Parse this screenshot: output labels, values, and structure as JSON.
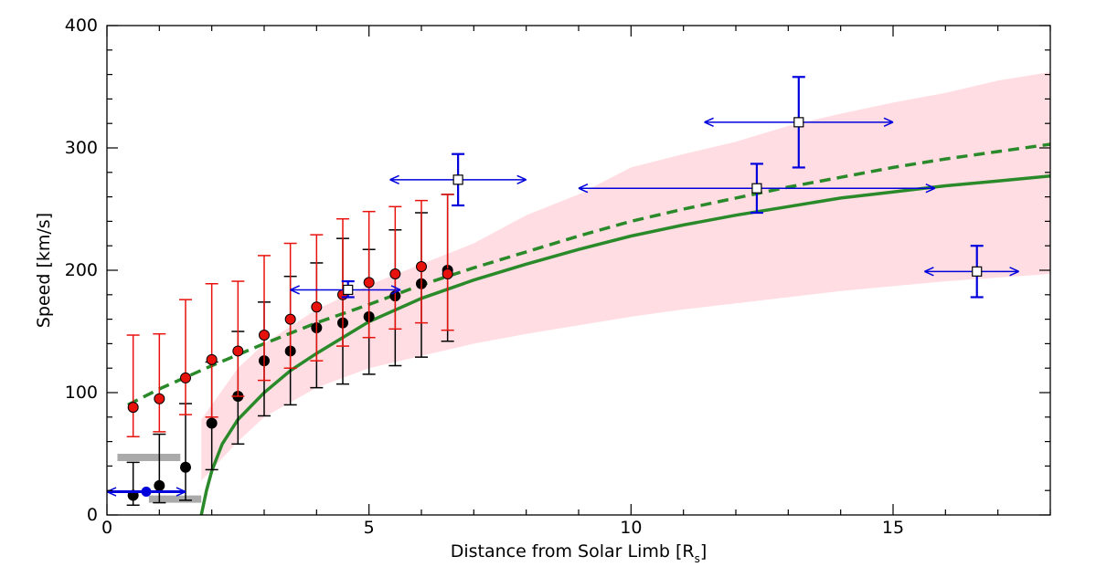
{
  "chart_data": {
    "type": "scatter",
    "title": "",
    "xlabel": "Distance from Solar Limb [R",
    "xlabel_sub": "s",
    "xlabel_close": "]",
    "ylabel": "Speed [km/s]",
    "xlim": [
      0,
      18
    ],
    "ylim": [
      0,
      400
    ],
    "x_ticks": [
      0,
      5,
      10,
      15
    ],
    "y_ticks": [
      0,
      100,
      200,
      300,
      400
    ],
    "grid": false,
    "legend": "none",
    "colors": {
      "red_series": "#e8120c",
      "black_series": "#000000",
      "blue_series": "#0000dd",
      "green_fit": "#2a8a2a",
      "pink_band": "#ffdde3",
      "gray_bar": "#aaaaaa"
    },
    "band": {
      "x": [
        1.8,
        2.5,
        3,
        4,
        5,
        6,
        7,
        8,
        9,
        10,
        11,
        12,
        13,
        14,
        15,
        16,
        17,
        18
      ],
      "lower": [
        28,
        60,
        80,
        104,
        120,
        130,
        140,
        148,
        155,
        162,
        168,
        173,
        178,
        183,
        187,
        191,
        194,
        197
      ],
      "upper": [
        78,
        120,
        140,
        168,
        188,
        205,
        222,
        245,
        262,
        284,
        295,
        305,
        318,
        328,
        337,
        345,
        355,
        362
      ]
    },
    "fit_solid": {
      "x0": 1.8,
      "x": [
        1.8,
        1.9,
        2,
        2.2,
        2.5,
        3,
        3.5,
        4,
        5,
        6,
        7,
        8,
        9,
        10,
        11,
        12,
        13,
        14,
        15,
        16,
        17,
        18
      ],
      "y": [
        0,
        20,
        36,
        58,
        78,
        100,
        118,
        132,
        158,
        177,
        192,
        205,
        217,
        228,
        237,
        245,
        252,
        259,
        264,
        269,
        273,
        277
      ]
    },
    "fit_dashed": {
      "x": [
        0.4,
        1,
        2,
        3,
        4,
        5,
        6,
        7,
        8,
        9,
        10,
        11,
        12,
        13,
        14,
        15,
        16,
        17,
        18
      ],
      "y": [
        90,
        103,
        122,
        140,
        157,
        172,
        188,
        202,
        215,
        228,
        240,
        250,
        259,
        268,
        276,
        284,
        291,
        297,
        303
      ]
    },
    "red_points": [
      {
        "x": 0.5,
        "y": 88,
        "lo": 64,
        "hi": 147
      },
      {
        "x": 1.0,
        "y": 95,
        "lo": 68,
        "hi": 148
      },
      {
        "x": 1.5,
        "y": 112,
        "lo": 82,
        "hi": 176
      },
      {
        "x": 2.0,
        "y": 127,
        "lo": 80,
        "hi": 189
      },
      {
        "x": 2.5,
        "y": 134,
        "lo": 97,
        "hi": 191
      },
      {
        "x": 3.0,
        "y": 147,
        "lo": 110,
        "hi": 212
      },
      {
        "x": 3.5,
        "y": 160,
        "lo": 120,
        "hi": 222
      },
      {
        "x": 4.0,
        "y": 170,
        "lo": 126,
        "hi": 229
      },
      {
        "x": 4.5,
        "y": 180,
        "lo": 138,
        "hi": 242
      },
      {
        "x": 5.0,
        "y": 190,
        "lo": 145,
        "hi": 248
      },
      {
        "x": 5.5,
        "y": 197,
        "lo": 152,
        "hi": 252
      },
      {
        "x": 6.0,
        "y": 203,
        "lo": 157,
        "hi": 257
      },
      {
        "x": 6.5,
        "y": 197,
        "lo": 151,
        "hi": 262
      }
    ],
    "black_points": [
      {
        "x": 0.5,
        "y": 16,
        "lo": 8,
        "hi": 43
      },
      {
        "x": 1.0,
        "y": 24,
        "lo": 10,
        "hi": 66
      },
      {
        "x": 1.5,
        "y": 39,
        "lo": 12,
        "hi": 91
      },
      {
        "x": 2.0,
        "y": 75,
        "lo": 37,
        "hi": 125
      },
      {
        "x": 2.5,
        "y": 97,
        "lo": 58,
        "hi": 150
      },
      {
        "x": 3.0,
        "y": 126,
        "lo": 81,
        "hi": 174
      },
      {
        "x": 3.5,
        "y": 134,
        "lo": 90,
        "hi": 195
      },
      {
        "x": 4.0,
        "y": 153,
        "lo": 104,
        "hi": 206
      },
      {
        "x": 4.5,
        "y": 157,
        "lo": 107,
        "hi": 226
      },
      {
        "x": 5.0,
        "y": 162,
        "lo": 115,
        "hi": 217
      },
      {
        "x": 5.5,
        "y": 179,
        "lo": 122,
        "hi": 233
      },
      {
        "x": 6.0,
        "y": 189,
        "lo": 129,
        "hi": 247
      },
      {
        "x": 6.5,
        "y": 200,
        "lo": 142,
        "hi": 262
      }
    ],
    "blue_points": [
      {
        "x": 4.6,
        "y": 184,
        "xlo": 3.5,
        "xhi": 5.6,
        "ylo": 178,
        "yhi": 191
      },
      {
        "x": 6.7,
        "y": 274,
        "xlo": 5.4,
        "xhi": 8.0,
        "ylo": 253,
        "yhi": 295
      },
      {
        "x": 12.4,
        "y": 267,
        "xlo": 9.0,
        "xhi": 15.8,
        "ylo": 247,
        "yhi": 287
      },
      {
        "x": 13.2,
        "y": 321,
        "xlo": 11.4,
        "xhi": 15.0,
        "ylo": 284,
        "yhi": 358
      },
      {
        "x": 16.6,
        "y": 199,
        "xlo": 15.6,
        "xhi": 17.4,
        "ylo": 178,
        "yhi": 220
      }
    ],
    "blue_small": [
      {
        "x": 0.75,
        "y": 19,
        "xlo": 0.0,
        "xhi": 1.5
      }
    ],
    "gray_bars": [
      {
        "xlo": 0.2,
        "xhi": 1.4,
        "y": 47
      },
      {
        "xlo": 0.8,
        "xhi": 1.8,
        "y": 13
      }
    ]
  }
}
